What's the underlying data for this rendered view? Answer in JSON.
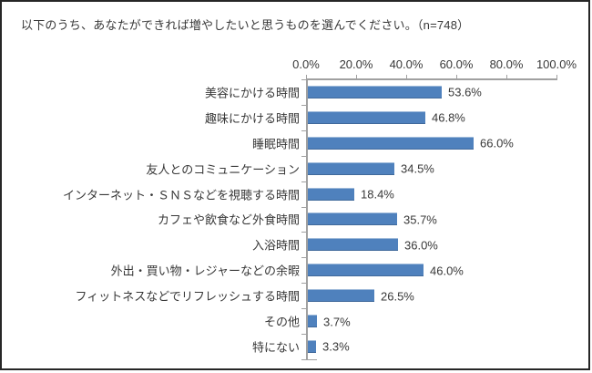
{
  "chart_data": {
    "type": "bar",
    "orientation": "horizontal",
    "title": "以下のうち、あなたができれば増やしたいと思うものを選んでください。（n=748）",
    "categories": [
      "美容にかける時間",
      "趣味にかける時間",
      "睡眠時間",
      "友人とのコミュニケーション",
      "インターネット・ＳＮＳなどを視聴する時間",
      "カフェや飲食など外食時間",
      "入浴時間",
      "外出・買い物・レジャーなどの余暇",
      "フィットネスなどでリフレッシュする時間",
      "その他",
      "特にない"
    ],
    "values": [
      53.6,
      46.8,
      66.0,
      34.5,
      18.4,
      35.7,
      36.0,
      46.0,
      26.5,
      3.7,
      3.3
    ],
    "value_labels": [
      "53.6%",
      "46.8%",
      "66.0%",
      "34.5%",
      "18.4%",
      "35.7%",
      "36.0%",
      "46.0%",
      "26.5%",
      "3.7%",
      "3.3%"
    ],
    "x_axis": {
      "position": "top",
      "min": 0,
      "max": 100,
      "tick_labels": [
        "0.0%",
        "20.0%",
        "40.0%",
        "60.0%",
        "80.0%",
        "100.0%"
      ]
    },
    "grid": false,
    "legend": false,
    "colors": {
      "bar": "#4f81bd",
      "axis": "#a0a0a0",
      "text": "#383838",
      "frame_border": "#262626"
    }
  }
}
